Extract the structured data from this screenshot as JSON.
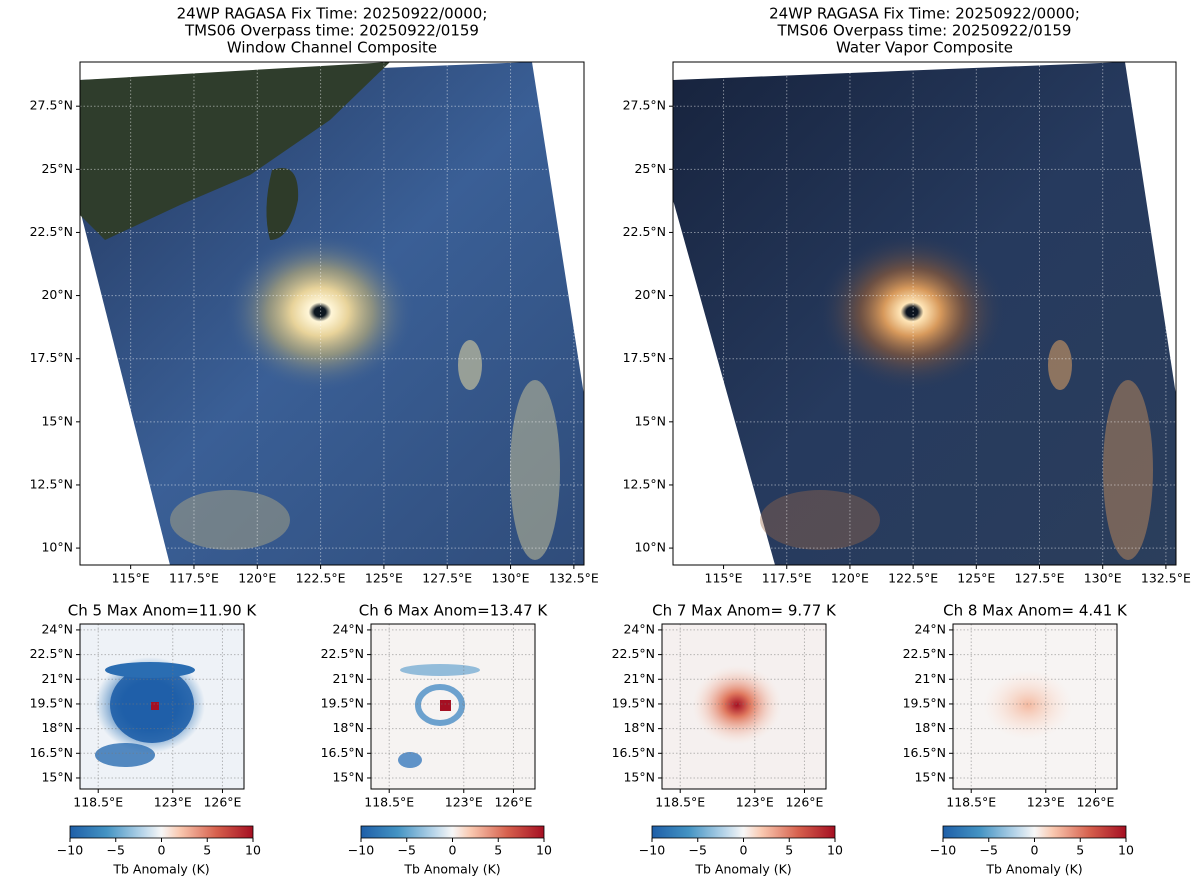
{
  "chart_data": [
    {
      "type": "map",
      "title_lines": [
        "24WP RAGASA Fix Time: 20250922/0000;",
        "TMS06 Overpass time: 20250922/0159",
        "Window Channel Composite"
      ],
      "xlim": [
        113.0,
        132.9
      ],
      "ylim": [
        9.33,
        29.25
      ],
      "xticks": [
        {
          "value": 115,
          "label": "115°E"
        },
        {
          "value": 117.5,
          "label": "117.5°E"
        },
        {
          "value": 120,
          "label": "120°E"
        },
        {
          "value": 122.5,
          "label": "122.5°E"
        },
        {
          "value": 125,
          "label": "125°E"
        },
        {
          "value": 127.5,
          "label": "127.5°E"
        },
        {
          "value": 130,
          "label": "130°E"
        },
        {
          "value": 132.5,
          "label": "132.5°E"
        }
      ],
      "yticks": [
        {
          "value": 10,
          "label": "10°N"
        },
        {
          "value": 12.5,
          "label": "12.5°N"
        },
        {
          "value": 15,
          "label": "15°N"
        },
        {
          "value": 17.5,
          "label": "17.5°N"
        },
        {
          "value": 20,
          "label": "20°N"
        },
        {
          "value": 22.5,
          "label": "22.5°N"
        },
        {
          "value": 25,
          "label": "25°N"
        },
        {
          "value": 27.5,
          "label": "27.5°N"
        }
      ],
      "grid": true
    },
    {
      "type": "map",
      "title_lines": [
        "24WP RAGASA Fix Time: 20250922/0000;",
        "TMS06 Overpass time: 20250922/0159",
        "Water Vapor Composite"
      ],
      "xlim": [
        113.0,
        132.9
      ],
      "ylim": [
        9.33,
        29.25
      ],
      "xticks": [
        {
          "value": 115,
          "label": "115°E"
        },
        {
          "value": 117.5,
          "label": "117.5°E"
        },
        {
          "value": 120,
          "label": "120°E"
        },
        {
          "value": 122.5,
          "label": "122.5°E"
        },
        {
          "value": 125,
          "label": "125°E"
        },
        {
          "value": 127.5,
          "label": "127.5°E"
        },
        {
          "value": 130,
          "label": "130°E"
        },
        {
          "value": 132.5,
          "label": "132.5°E"
        }
      ],
      "yticks": [
        {
          "value": 10,
          "label": "10°N"
        },
        {
          "value": 12.5,
          "label": "12.5°N"
        },
        {
          "value": 15,
          "label": "15°N"
        },
        {
          "value": 17.5,
          "label": "17.5°N"
        },
        {
          "value": 20,
          "label": "20°N"
        },
        {
          "value": 22.5,
          "label": "22.5°N"
        },
        {
          "value": 25,
          "label": "25°N"
        },
        {
          "value": 27.5,
          "label": "27.5°N"
        }
      ],
      "grid": true
    },
    {
      "type": "anomaly",
      "title_lines": [
        "Ch 5 Max Anom=11.90 K"
      ],
      "xlim": [
        117.4,
        127.3
      ],
      "ylim": [
        14.33,
        24.36
      ],
      "xticks": [
        {
          "value": 118.5,
          "label": "118.5°E"
        },
        {
          "value": 123,
          "label": "123°E"
        },
        {
          "value": 126,
          "label": "126°E"
        }
      ],
      "yticks": [
        {
          "value": 15,
          "label": "15°N"
        },
        {
          "value": 16.5,
          "label": "16.5°N"
        },
        {
          "value": 18,
          "label": "18°N"
        },
        {
          "value": 19.5,
          "label": "19.5°N"
        },
        {
          "value": 21,
          "label": "21°N"
        },
        {
          "value": 22.5,
          "label": "22.5°N"
        },
        {
          "value": 24,
          "label": "24°N"
        }
      ],
      "grid": true,
      "colorbar_label": "Tb Anomaly (K)",
      "clim": [
        -10,
        10
      ],
      "cticks": [
        {
          "value": -10,
          "label": "−10"
        },
        {
          "value": -5,
          "label": "−5"
        },
        0,
        5,
        10
      ]
    },
    {
      "type": "anomaly",
      "title_lines": [
        "Ch 6 Max Anom=13.47 K"
      ],
      "xlim": [
        117.4,
        127.3
      ],
      "ylim": [
        14.33,
        24.36
      ],
      "xticks": [
        {
          "value": 118.5,
          "label": "118.5°E"
        },
        {
          "value": 123,
          "label": "123°E"
        },
        {
          "value": 126,
          "label": "126°E"
        }
      ],
      "yticks": [
        {
          "value": 15,
          "label": "15°N"
        },
        {
          "value": 16.5,
          "label": "16.5°N"
        },
        {
          "value": 18,
          "label": "18°N"
        },
        {
          "value": 19.5,
          "label": "19.5°N"
        },
        {
          "value": 21,
          "label": "21°N"
        },
        {
          "value": 22.5,
          "label": "22.5°N"
        },
        {
          "value": 24,
          "label": "24°N"
        }
      ],
      "grid": true,
      "colorbar_label": "Tb Anomaly (K)",
      "clim": [
        -10,
        10
      ],
      "cticks": [
        {
          "value": -10,
          "label": "−10"
        },
        {
          "value": -5,
          "label": "−5"
        },
        0,
        5,
        10
      ]
    },
    {
      "type": "anomaly",
      "title_lines": [
        "Ch 7 Max Anom= 9.77 K"
      ],
      "xlim": [
        117.4,
        127.3
      ],
      "ylim": [
        14.33,
        24.36
      ],
      "xticks": [
        {
          "value": 118.5,
          "label": "118.5°E"
        },
        {
          "value": 123,
          "label": "123°E"
        },
        {
          "value": 126,
          "label": "126°E"
        }
      ],
      "yticks": [
        {
          "value": 15,
          "label": "15°N"
        },
        {
          "value": 16.5,
          "label": "16.5°N"
        },
        {
          "value": 18,
          "label": "18°N"
        },
        {
          "value": 19.5,
          "label": "19.5°N"
        },
        {
          "value": 21,
          "label": "21°N"
        },
        {
          "value": 22.5,
          "label": "22.5°N"
        },
        {
          "value": 24,
          "label": "24°N"
        }
      ],
      "grid": true,
      "colorbar_label": "Tb Anomaly (K)",
      "clim": [
        -10,
        10
      ],
      "cticks": [
        {
          "value": -10,
          "label": "−10"
        },
        {
          "value": -5,
          "label": "−5"
        },
        0,
        5,
        10
      ]
    },
    {
      "type": "anomaly",
      "title_lines": [
        "Ch 8 Max Anom= 4.41 K"
      ],
      "xlim": [
        117.4,
        127.3
      ],
      "ylim": [
        14.33,
        24.36
      ],
      "xticks": [
        {
          "value": 118.5,
          "label": "118.5°E"
        },
        {
          "value": 123,
          "label": "123°E"
        },
        {
          "value": 126,
          "label": "126°E"
        }
      ],
      "yticks": [
        {
          "value": 15,
          "label": "15°N"
        },
        {
          "value": 16.5,
          "label": "16.5°N"
        },
        {
          "value": 18,
          "label": "18°N"
        },
        {
          "value": 19.5,
          "label": "19.5°N"
        },
        {
          "value": 21,
          "label": "21°N"
        },
        {
          "value": 22.5,
          "label": "22.5°N"
        },
        {
          "value": 24,
          "label": "24°N"
        }
      ],
      "grid": true,
      "colorbar_label": "Tb Anomaly (K)",
      "clim": [
        -10,
        10
      ],
      "cticks": [
        {
          "value": -10,
          "label": "−10"
        },
        {
          "value": -5,
          "label": "−5"
        },
        0,
        5,
        10
      ]
    }
  ]
}
